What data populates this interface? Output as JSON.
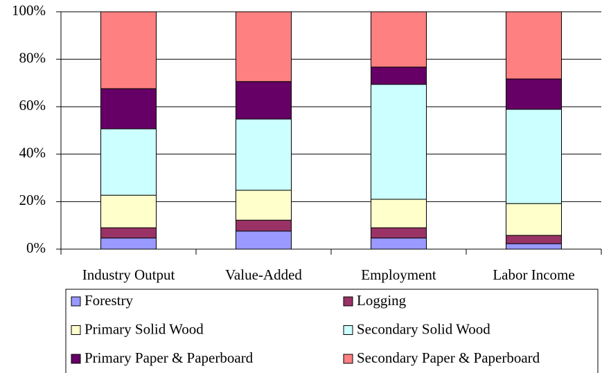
{
  "chart_data": {
    "type": "stacked_bar_percent",
    "categories": [
      "Industry Output",
      "Value-Added",
      "Employment",
      "Labor Income"
    ],
    "series": [
      {
        "name": "Forestry",
        "color": "#9999ff",
        "values": [
          4.7,
          7.6,
          4.7,
          2.3
        ]
      },
      {
        "name": "Logging",
        "color": "#993366",
        "values": [
          4.3,
          4.6,
          4.3,
          3.5
        ]
      },
      {
        "name": "Primary Solid Wood",
        "color": "#ffffcc",
        "values": [
          13.7,
          12.6,
          12.0,
          13.4
        ]
      },
      {
        "name": "Secondary Solid Wood",
        "color": "#ccffff",
        "values": [
          28.0,
          30.0,
          48.4,
          39.7
        ]
      },
      {
        "name": "Primary Paper & Paperboard",
        "color": "#660066",
        "values": [
          16.9,
          15.8,
          7.3,
          12.8
        ]
      },
      {
        "name": "Secondary Paper & Paperboard",
        "color": "#ff8080",
        "values": [
          32.4,
          29.4,
          23.3,
          28.3
        ]
      }
    ],
    "ylim": [
      0,
      100
    ],
    "yticks": [
      {
        "value": 0,
        "label": "0%"
      },
      {
        "value": 20,
        "label": "20%"
      },
      {
        "value": 40,
        "label": "40%"
      },
      {
        "value": 60,
        "label": "60%"
      },
      {
        "value": 80,
        "label": "80%"
      },
      {
        "value": 100,
        "label": "100%"
      }
    ],
    "grid": true,
    "legend": "bottom"
  }
}
